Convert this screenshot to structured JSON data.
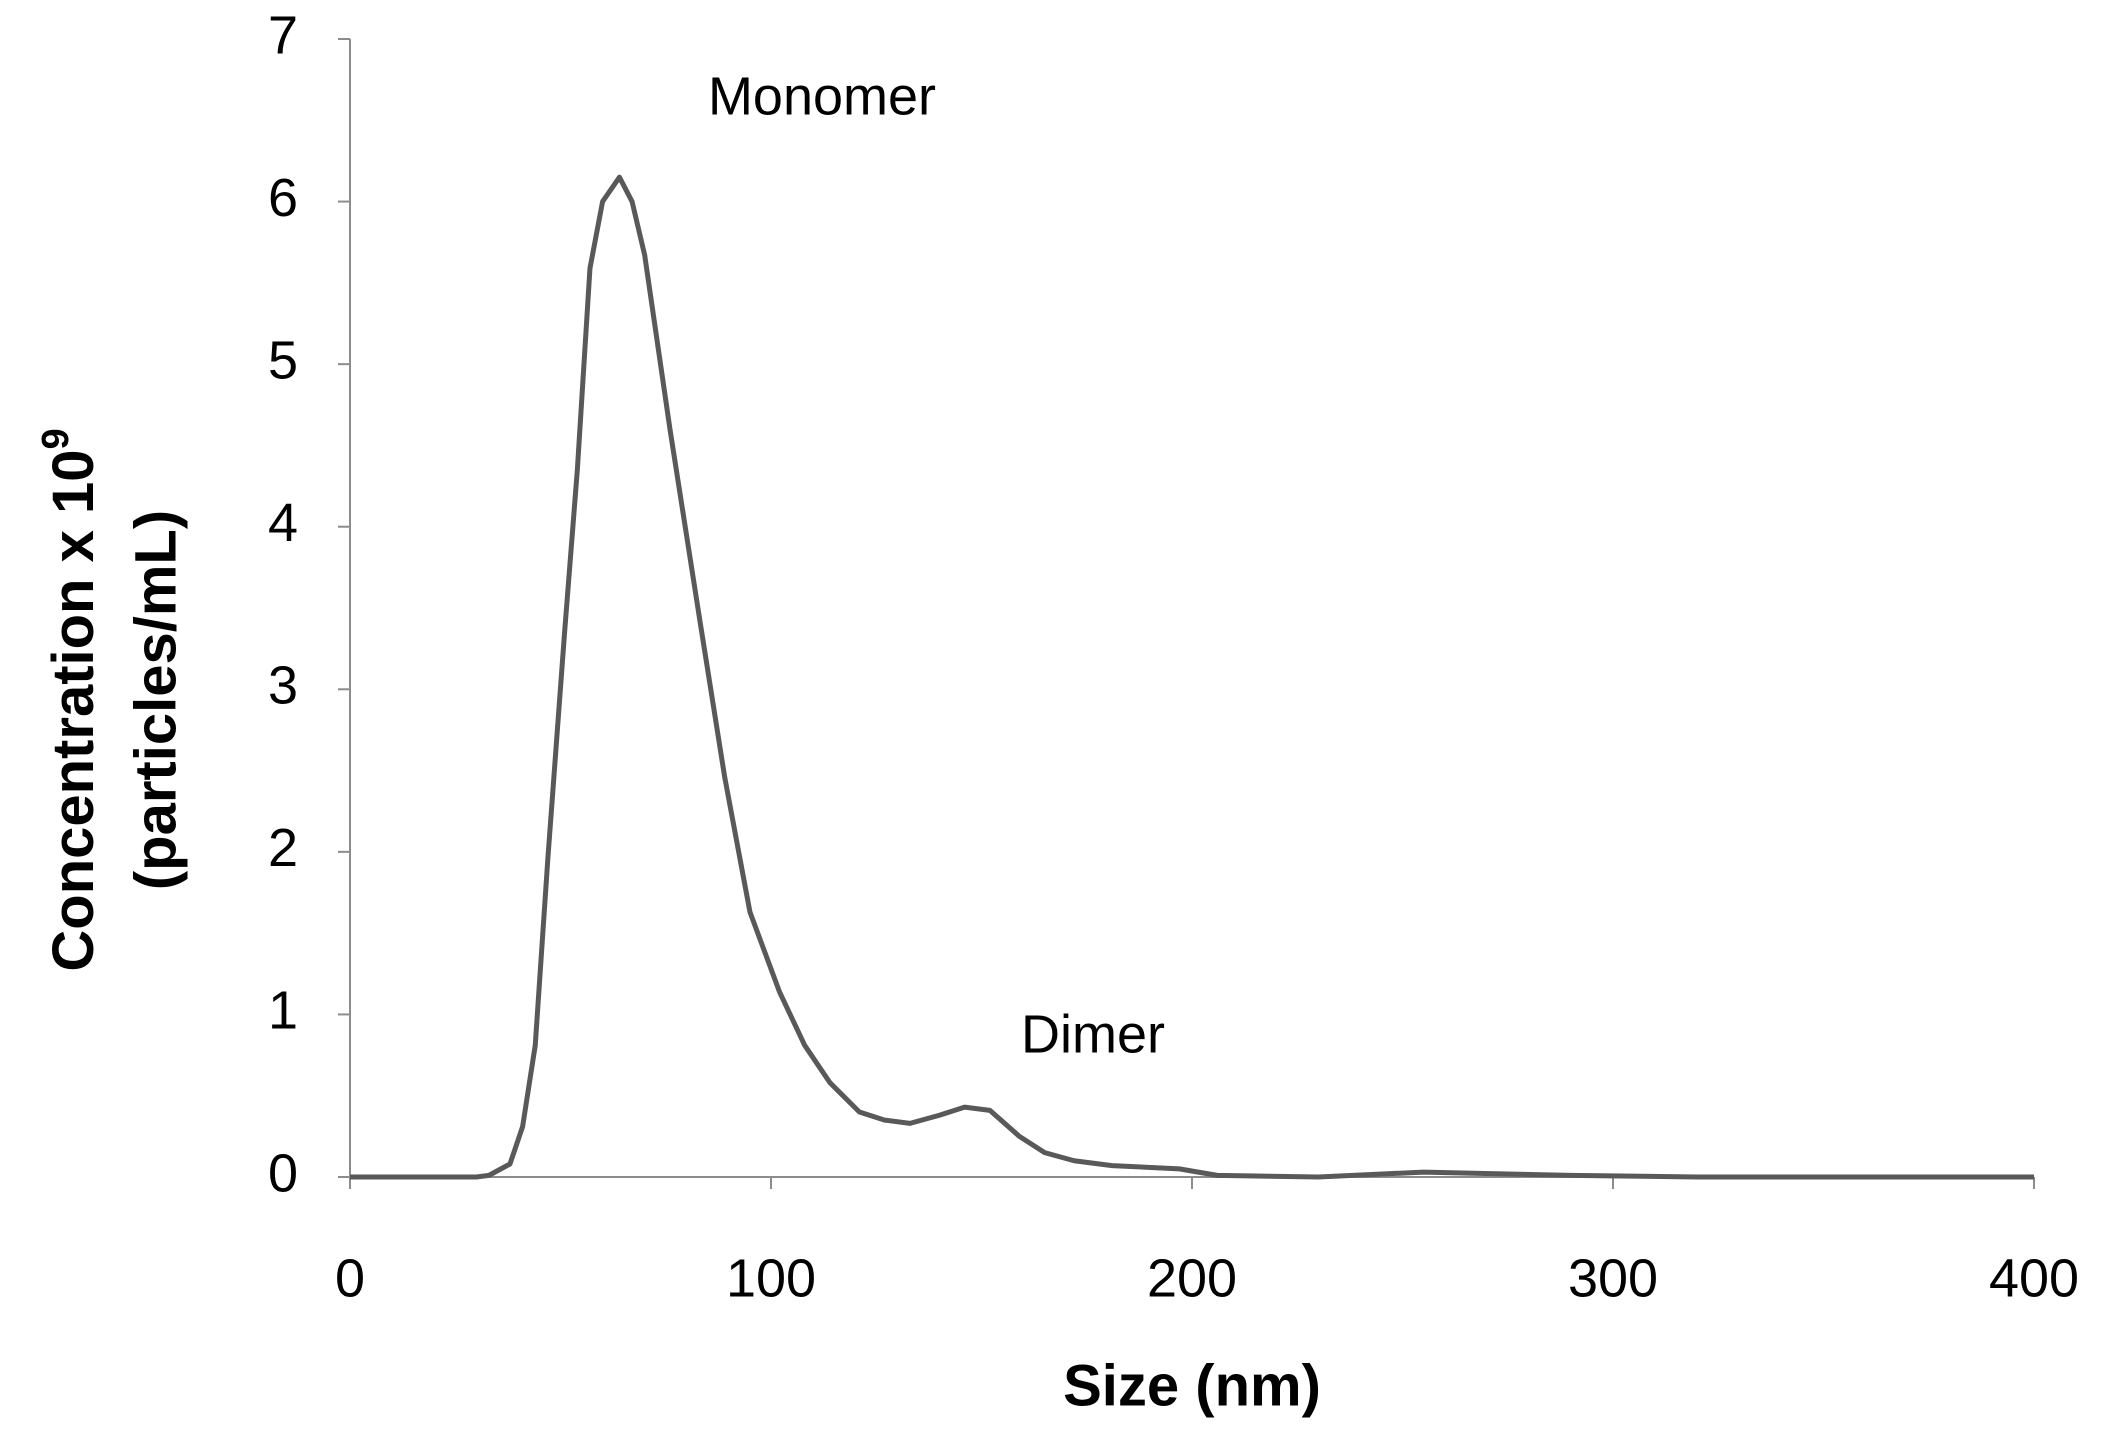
{
  "chart_data": {
    "type": "line",
    "x_label": "Size (nm)",
    "y_label": {
      "line1": "Concentration x 10",
      "sup": "9",
      "line2": "(particles/mL)"
    },
    "annotations": [
      "Monomer",
      "Dimer"
    ],
    "x": [
      0,
      30,
      33,
      38,
      41,
      44,
      47,
      51,
      54,
      57,
      60,
      64,
      67,
      70,
      76,
      83,
      89,
      95,
      102,
      108,
      114,
      121,
      127,
      133,
      140,
      146,
      152,
      159,
      165,
      172,
      181,
      197,
      206,
      230,
      255,
      290,
      320,
      400
    ],
    "series": [
      {
        "name": "Concentration",
        "color": "#595959",
        "values": [
          0,
          0,
          0.01,
          0.08,
          0.31,
          0.81,
          1.96,
          3.36,
          4.35,
          5.59,
          6.0,
          6.15,
          6.0,
          5.67,
          4.6,
          3.44,
          2.46,
          1.63,
          1.14,
          0.81,
          0.58,
          0.4,
          0.35,
          0.33,
          0.38,
          0.43,
          0.41,
          0.25,
          0.15,
          0.1,
          0.07,
          0.05,
          0.01,
          0,
          0.03,
          0.01,
          0,
          0
        ]
      }
    ],
    "xlim": [
      0,
      400
    ],
    "xticks": [
      0,
      100,
      200,
      300,
      400
    ],
    "ylim": [
      0,
      7
    ],
    "yticks": [
      0,
      1,
      2,
      3,
      4,
      5,
      6,
      7
    ],
    "grid": false
  }
}
